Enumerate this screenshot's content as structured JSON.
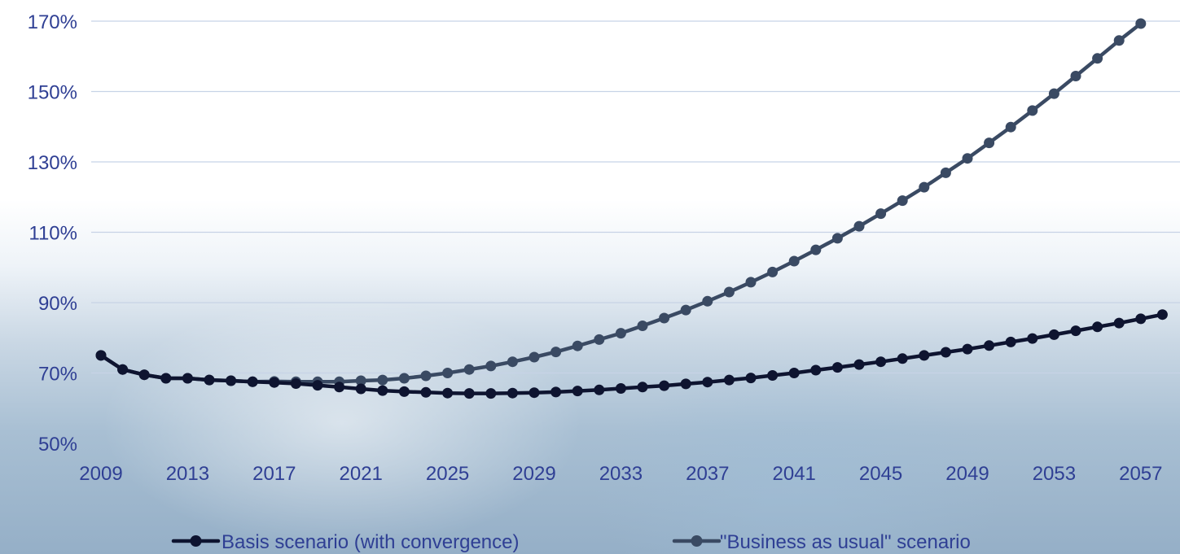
{
  "chart_data": {
    "type": "line",
    "title": "",
    "xlabel": "",
    "ylabel": "",
    "ylim": [
      50,
      170
    ],
    "y_ticks": [
      "50%",
      "70%",
      "90%",
      "110%",
      "130%",
      "150%",
      "170%"
    ],
    "x_tick_labels": [
      "2009",
      "2013",
      "2017",
      "2021",
      "2025",
      "2029",
      "2033",
      "2037",
      "2041",
      "2045",
      "2049",
      "2053",
      "2057"
    ],
    "grid": "horizontal",
    "legend_position": "bottom",
    "series": [
      {
        "name": "Basis scenario (with convergence)",
        "color": "#0e1430",
        "x": [
          2009,
          2010,
          2011,
          2012,
          2013,
          2014,
          2015,
          2016,
          2017,
          2018,
          2019,
          2020,
          2021,
          2022,
          2023,
          2024,
          2025,
          2026,
          2027,
          2028,
          2029,
          2030,
          2031,
          2032,
          2033,
          2034,
          2035,
          2036,
          2037,
          2038,
          2039,
          2040,
          2041,
          2042,
          2043,
          2044,
          2045,
          2046,
          2047,
          2048,
          2049,
          2050,
          2051,
          2052,
          2053,
          2054,
          2055,
          2056,
          2057,
          2058
        ],
        "values": [
          75,
          71,
          69.5,
          68.5,
          68.5,
          68,
          67.8,
          67.5,
          67.3,
          67,
          66.5,
          66,
          65.5,
          65,
          64.7,
          64.5,
          64.3,
          64.2,
          64.2,
          64.3,
          64.4,
          64.6,
          64.9,
          65.2,
          65.6,
          66,
          66.4,
          66.9,
          67.4,
          68,
          68.6,
          69.3,
          70,
          70.8,
          71.6,
          72.4,
          73.2,
          74.1,
          75,
          75.9,
          76.8,
          77.8,
          78.8,
          79.8,
          80.9,
          82,
          83.1,
          84.2,
          85.4,
          86.6
        ]
      },
      {
        "name": "\"Business as usual\" scenario",
        "color": "#3a4a63",
        "x": [
          2009,
          2010,
          2011,
          2012,
          2013,
          2014,
          2015,
          2016,
          2017,
          2018,
          2019,
          2020,
          2021,
          2022,
          2023,
          2024,
          2025,
          2026,
          2027,
          2028,
          2029,
          2030,
          2031,
          2032,
          2033,
          2034,
          2035,
          2036,
          2037,
          2038,
          2039,
          2040,
          2041,
          2042,
          2043,
          2044,
          2045,
          2046,
          2047,
          2048,
          2049,
          2050,
          2051,
          2052,
          2053,
          2054,
          2055,
          2056,
          2057
        ],
        "values": [
          75,
          71,
          69.5,
          68.5,
          68.5,
          68,
          67.8,
          67.5,
          67.6,
          67.5,
          67.5,
          67.5,
          67.8,
          68,
          68.5,
          69.2,
          70,
          71,
          72,
          73.2,
          74.5,
          76,
          77.7,
          79.5,
          81.3,
          83.4,
          85.6,
          87.9,
          90.4,
          93,
          95.8,
          98.7,
          101.8,
          105,
          108.3,
          111.7,
          115.3,
          119,
          122.8,
          126.9,
          131,
          135.4,
          139.9,
          144.6,
          149.4,
          154.4,
          159.4,
          164.5,
          169.3
        ]
      }
    ]
  }
}
